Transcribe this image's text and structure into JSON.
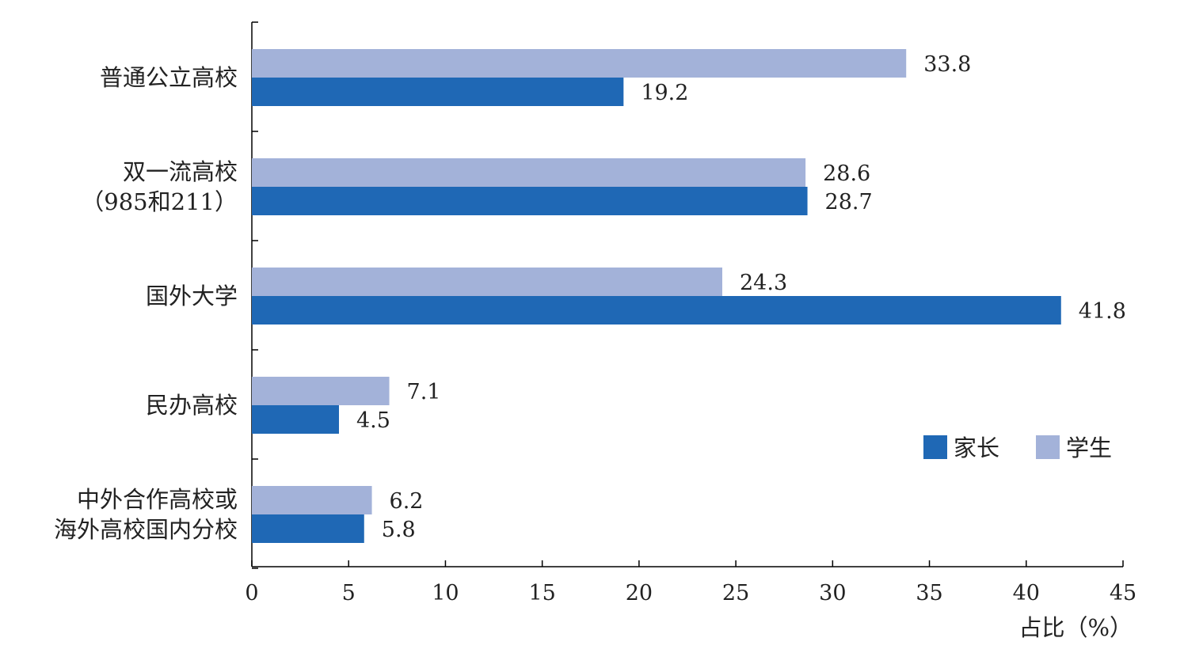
{
  "chart_data": {
    "type": "bar",
    "orientation": "horizontal",
    "categories": [
      [
        "普通公立高校"
      ],
      [
        "双一流高校",
        "（985和211）"
      ],
      [
        "国外大学"
      ],
      [
        "民办高校"
      ],
      [
        "中外合作高校或",
        "海外高校国内分校"
      ]
    ],
    "series": [
      {
        "name": "家长",
        "color": "#1f68b5",
        "values": [
          19.2,
          28.7,
          41.8,
          4.5,
          5.8
        ]
      },
      {
        "name": "学生",
        "color": "#a3b2d9",
        "values": [
          33.8,
          28.6,
          24.3,
          7.1,
          6.2
        ]
      }
    ],
    "xlabel": "占比（%）",
    "xlim": [
      0,
      45
    ],
    "xticks": [
      "0",
      "5",
      "10",
      "15",
      "20",
      "25",
      "30",
      "35",
      "40",
      "45"
    ],
    "grid": false,
    "legend_position": "lower-right"
  }
}
